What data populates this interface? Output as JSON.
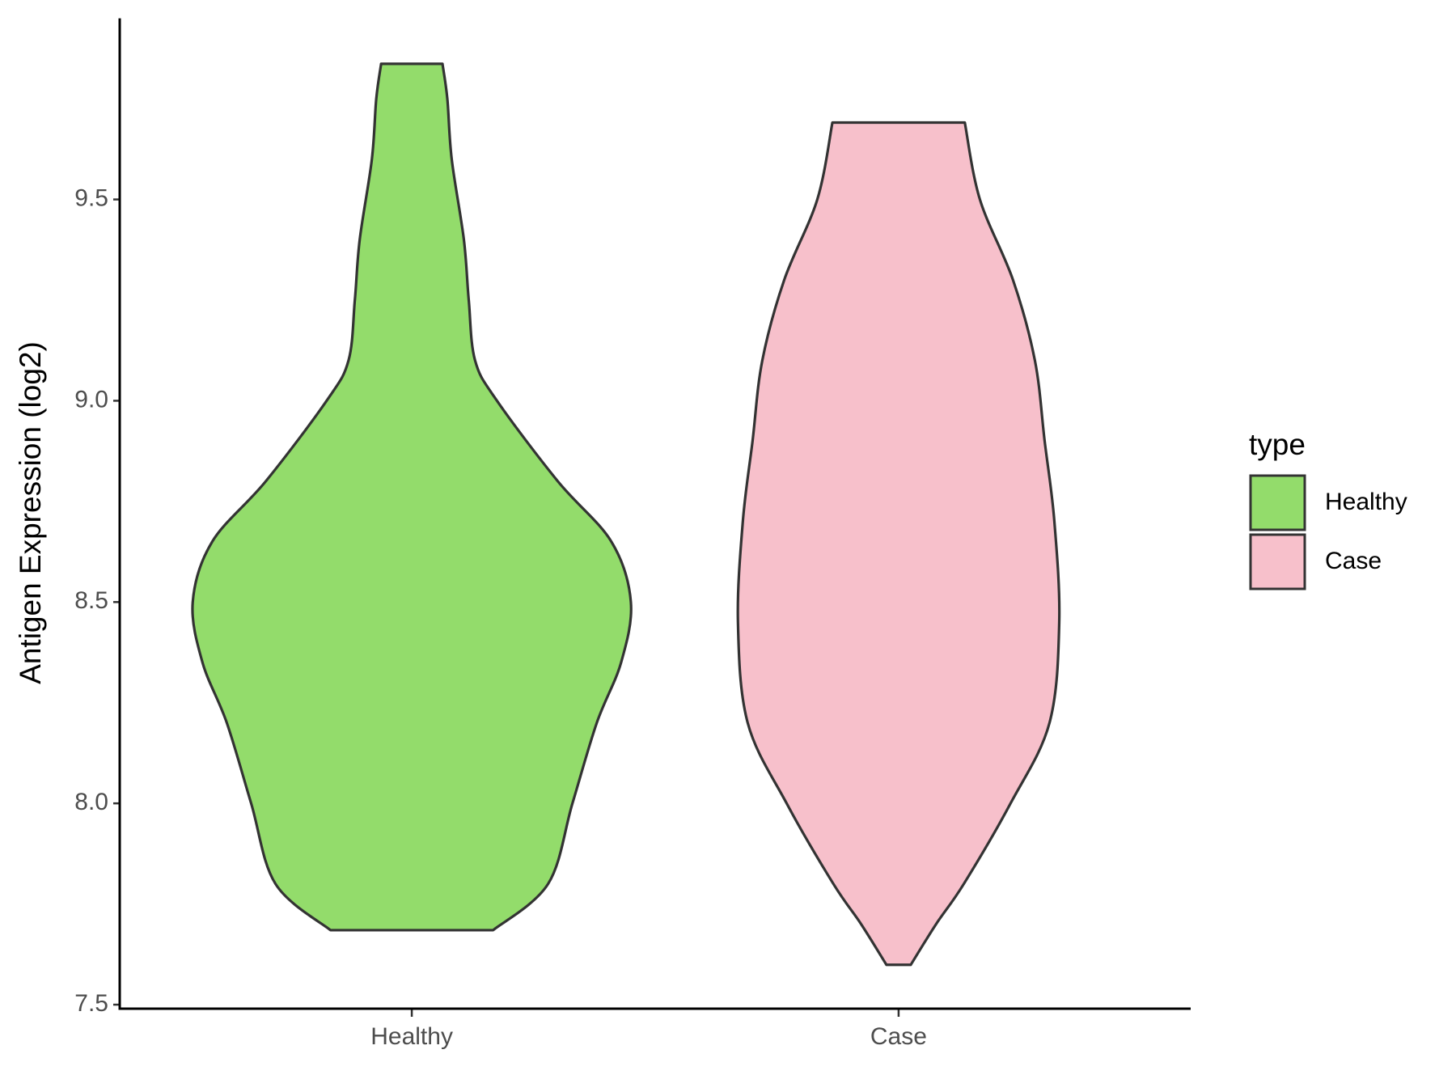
{
  "chart_data": {
    "type": "violin",
    "y_label": "Antigen Expression (log2)",
    "categories": [
      "Healthy",
      "Case"
    ],
    "legend_title": "type",
    "legend": "right",
    "series": [
      {
        "name": "Healthy",
        "color": "#93dc6b",
        "y": [
          7.685,
          7.8,
          8.0,
          8.2,
          8.35,
          8.5,
          8.65,
          8.8,
          9.0,
          9.1,
          9.25,
          9.4,
          9.6,
          9.75,
          9.837
        ],
        "half_width": [
          0.167,
          0.28,
          0.33,
          0.38,
          0.43,
          0.45,
          0.41,
          0.3,
          0.175,
          0.13,
          0.117,
          0.107,
          0.082,
          0.073,
          0.063
        ]
      },
      {
        "name": "Case",
        "color": "#f7c0cb",
        "y": [
          7.599,
          7.7,
          7.8,
          8.0,
          8.2,
          8.45,
          8.7,
          8.9,
          9.1,
          9.3,
          9.5,
          9.691
        ],
        "half_width": [
          0.025,
          0.077,
          0.134,
          0.23,
          0.31,
          0.33,
          0.32,
          0.3,
          0.28,
          0.235,
          0.167,
          0.136
        ]
      }
    ],
    "xlim": [
      0.4,
      2.6
    ],
    "ylim": [
      7.49,
      9.95
    ],
    "yticks": [
      7.5,
      {
        "value": 8,
        "label": "8.0"
      },
      8.5,
      {
        "value": 9,
        "label": "9.0"
      },
      9.5
    ]
  }
}
